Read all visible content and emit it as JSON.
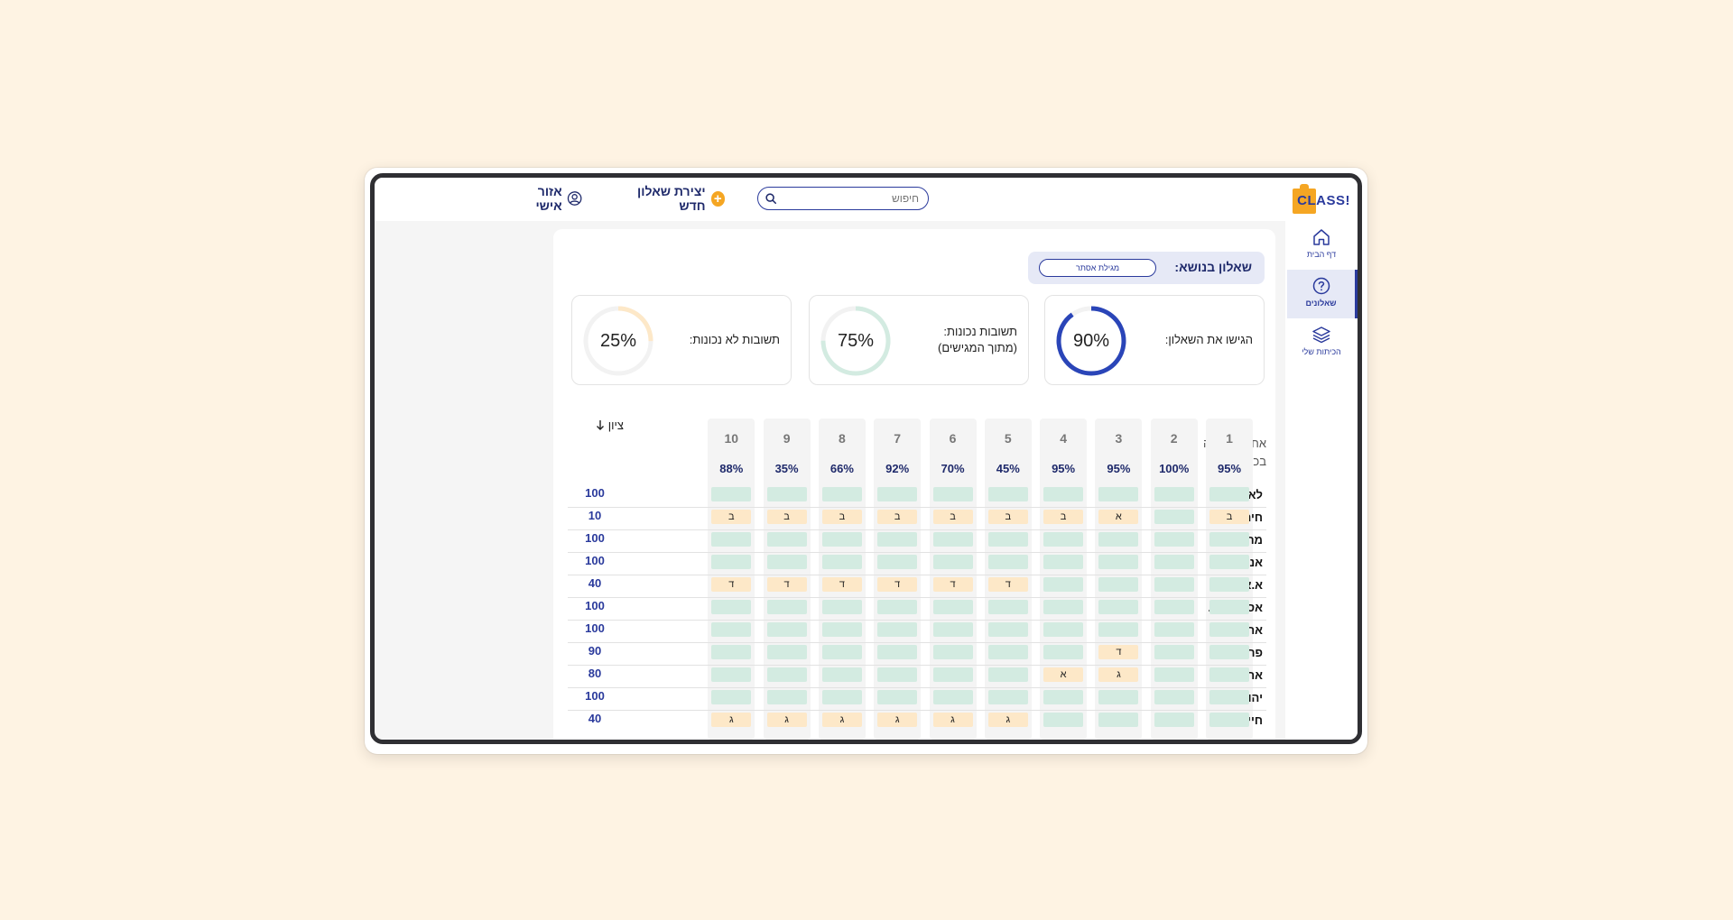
{
  "app": {
    "logo_text": "CLASS!"
  },
  "header": {
    "search_placeholder": "חיפוש",
    "new_questionnaire_label": "יצירת שאלון חדש",
    "personal_area_label": "אזור אישי"
  },
  "sidebar": {
    "items": [
      {
        "label": "דף הבית",
        "icon": "home-icon",
        "active": false
      },
      {
        "label": "שאלונים",
        "icon": "question-circle-icon",
        "active": true
      },
      {
        "label": "הכיתות שלי",
        "icon": "layers-icon",
        "active": false
      }
    ]
  },
  "topic": {
    "label": "שאלון בנושא:",
    "value": "מגילת אסתר"
  },
  "stats": [
    {
      "label_line1": "הגישו את השאלון:",
      "label_line2": "",
      "pct_text": "90%",
      "value": 0.9,
      "color": "#2A45B8"
    },
    {
      "label_line1": "תשובות נכונות:",
      "label_line2": "(מתוך המגישים)",
      "pct_text": "75%",
      "value": 0.75,
      "color": "#D3EBE1"
    },
    {
      "label_line1": "תשובות לא נכונות:",
      "label_line2": "",
      "pct_text": "25%",
      "value": 0.25,
      "color": "#FDE8C8"
    }
  ],
  "grid": {
    "success_label_line1": "אחוזי הצלחה",
    "success_label_line2": "בכל שאלה:",
    "grade_label": "ציון",
    "questions": [
      {
        "num": "1",
        "pct": "95%"
      },
      {
        "num": "2",
        "pct": "100%"
      },
      {
        "num": "3",
        "pct": "95%"
      },
      {
        "num": "4",
        "pct": "95%"
      },
      {
        "num": "5",
        "pct": "45%"
      },
      {
        "num": "6",
        "pct": "70%"
      },
      {
        "num": "7",
        "pct": "92%"
      },
      {
        "num": "8",
        "pct": "66%"
      },
      {
        "num": "9",
        "pct": "35%"
      },
      {
        "num": "10",
        "pct": "88%"
      }
    ],
    "students": [
      {
        "name": "לאה ג.",
        "score": "100",
        "answers": [
          "",
          "",
          "",
          "",
          "",
          "",
          "",
          "",
          "",
          ""
        ]
      },
      {
        "name": "חיה ש.",
        "score": "10",
        "answers": [
          "ב",
          "",
          "א",
          "ב",
          "ב",
          "ב",
          "ב",
          "ב",
          "ב",
          "ב"
        ]
      },
      {
        "name": "מרים ר.",
        "score": "100",
        "answers": [
          "",
          "",
          "",
          "",
          "",
          "",
          "",
          "",
          "",
          ""
        ]
      },
      {
        "name": "אנטואן א.",
        "score": "100",
        "answers": [
          "",
          "",
          "",
          "",
          "",
          "",
          "",
          "",
          "",
          ""
        ]
      },
      {
        "name": "א.א. מילן",
        "score": "40",
        "answers": [
          "",
          "",
          "",
          "",
          "ד",
          "ד",
          "ד",
          "ד",
          "ד",
          "ד"
        ]
      },
      {
        "name": "אסטריד ל.",
        "score": "100",
        "answers": [
          "",
          "",
          "",
          "",
          "",
          "",
          "",
          "",
          "",
          ""
        ]
      },
      {
        "name": "אריק ק.",
        "score": "100",
        "answers": [
          "",
          "",
          "",
          "",
          "",
          "",
          "",
          "",
          "",
          ""
        ]
      },
      {
        "name": "פרנץ מ.",
        "score": "90",
        "answers": [
          "",
          "",
          "ד",
          "",
          "",
          "",
          "",
          "",
          "",
          ""
        ]
      },
      {
        "name": "אריך ק.",
        "score": "80",
        "answers": [
          "",
          "",
          "ג",
          "א",
          "",
          "",
          "",
          "",
          "",
          ""
        ]
      },
      {
        "name": "יהודה א.",
        "score": "100",
        "answers": [
          "",
          "",
          "",
          "",
          "",
          "",
          "",
          "",
          "",
          ""
        ]
      },
      {
        "name": "חיים נ.ב.",
        "score": "40",
        "answers": [
          "",
          "",
          "",
          "",
          "ג",
          "ג",
          "ג",
          "ג",
          "ג",
          "ג"
        ]
      }
    ]
  }
}
